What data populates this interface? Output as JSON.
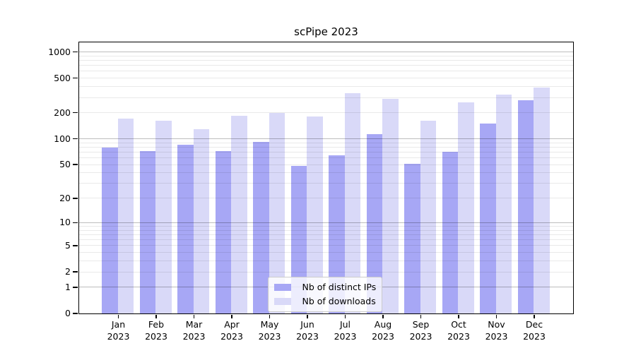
{
  "chart_data": {
    "type": "bar",
    "title": "scPipe 2023",
    "months": [
      "Jan",
      "Feb",
      "Mar",
      "Apr",
      "May",
      "Jun",
      "Jul",
      "Aug",
      "Sep",
      "Oct",
      "Nov",
      "Dec"
    ],
    "year": "2023",
    "categories": [
      "Jan 2023",
      "Feb 2023",
      "Mar 2023",
      "Apr 2023",
      "May 2023",
      "Jun 2023",
      "Jul 2023",
      "Aug 2023",
      "Sep 2023",
      "Oct 2023",
      "Nov 2023",
      "Dec 2023"
    ],
    "series": [
      {
        "name": "Nb of distinct IPs",
        "color": "#a7a7f5",
        "values": [
          79,
          71,
          84,
          71,
          91,
          48,
          64,
          112,
          51,
          70,
          150,
          276
        ]
      },
      {
        "name": "Nb of downloads",
        "color": "#d9d9f8",
        "values": [
          170,
          159,
          129,
          184,
          196,
          178,
          330,
          285,
          160,
          259,
          321,
          390
        ]
      }
    ],
    "yscale": "log1p",
    "ylim": [
      0,
      1290
    ],
    "y_ticks": [
      1000,
      500,
      200,
      100,
      50,
      20,
      10,
      5,
      2,
      1,
      0
    ],
    "grid_major_values": [
      1,
      10,
      100,
      1000
    ],
    "grid_minor_values": [
      2,
      3,
      4,
      5,
      6,
      7,
      8,
      9,
      20,
      30,
      40,
      50,
      60,
      70,
      80,
      90,
      200,
      300,
      400,
      500,
      600,
      700,
      800,
      900
    ],
    "legend": {
      "position": "lower-center",
      "items": [
        "Nb of distinct IPs",
        "Nb of downloads"
      ]
    },
    "xlabel": "",
    "ylabel": ""
  },
  "colors": {
    "distinct_ips": "#a7a7f5",
    "downloads": "#d9d9f8",
    "grid_minor": "rgba(0,0,0,0.085)",
    "grid_major": "rgba(0,0,0,0.26)",
    "spine": "#000000",
    "background": "#ffffff"
  }
}
